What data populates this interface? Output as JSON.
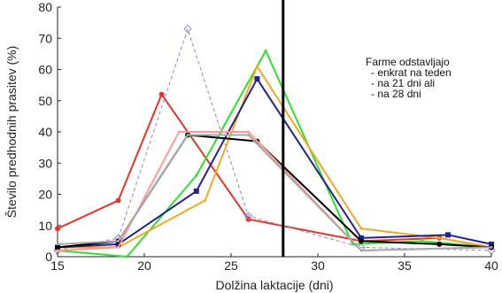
{
  "chart_data": {
    "type": "line",
    "title": "",
    "xlabel": "Dolžina laktacije (dni)",
    "ylabel": "Število predhodnih prasitev  (%)",
    "xlim": [
      15,
      40
    ],
    "ylim": [
      0,
      80
    ],
    "xticks": [
      "15",
      "20",
      "25",
      "30",
      "35",
      "40"
    ],
    "yticks": [
      "0",
      "10",
      "20",
      "30",
      "40",
      "50",
      "60",
      "70",
      "80"
    ],
    "grid": false,
    "vline_x": 28,
    "annotation": [
      "Farme odstavljajo",
      " - enkrat na teden",
      " - na 21 dni ali",
      " - na 28 dni"
    ],
    "series": [
      {
        "color": "#e8332a",
        "style": "solid",
        "marker": "circle",
        "x": [
          15,
          18.5,
          21,
          26,
          32.5,
          37,
          40
        ],
        "y": [
          9,
          18,
          52,
          12,
          5,
          6,
          3
        ]
      },
      {
        "color": "#8888cc",
        "style": "dashed",
        "marker": "diamond",
        "x": [
          15,
          18.5,
          22.5,
          26,
          32.5,
          40
        ],
        "y": [
          2,
          6,
          73,
          13,
          3,
          2
        ]
      },
      {
        "color": "#2ee02e",
        "style": "solid",
        "marker": "none",
        "x": [
          15,
          19,
          23,
          27,
          32,
          36,
          40
        ],
        "y": [
          2,
          0,
          26,
          66,
          4,
          5,
          3
        ]
      },
      {
        "color": "#f5a623",
        "style": "solid",
        "marker": "none",
        "x": [
          15,
          18.5,
          23.5,
          26.5,
          32.5,
          37,
          40
        ],
        "y": [
          3,
          3,
          18,
          61,
          9,
          6,
          3
        ]
      },
      {
        "color": "#22228c",
        "style": "solid",
        "marker": "square",
        "x": [
          15,
          18.5,
          23,
          26.5,
          32.5,
          37.5,
          40
        ],
        "y": [
          3,
          4,
          21,
          57,
          6,
          7,
          4
        ]
      },
      {
        "color": "#000000",
        "style": "solid",
        "marker": "circle",
        "x": [
          15,
          18.5,
          22.5,
          26.5,
          32.5,
          37,
          40
        ],
        "y": [
          3,
          5,
          39,
          37,
          5,
          4,
          3
        ]
      },
      {
        "color": "#ff9999",
        "style": "solid",
        "marker": "none",
        "x": [
          15,
          18.5,
          22,
          26,
          32.5,
          40
        ],
        "y": [
          2,
          3,
          40,
          40,
          2,
          3
        ]
      },
      {
        "color": "#a8a8a8",
        "style": "solid",
        "marker": "none",
        "x": [
          15,
          18.5,
          22.5,
          26,
          32.5,
          40
        ],
        "y": [
          4,
          5,
          39,
          39,
          2,
          3
        ]
      }
    ]
  }
}
